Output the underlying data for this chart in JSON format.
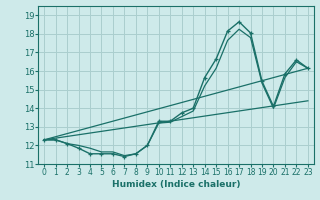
{
  "xlabel": "Humidex (Indice chaleur)",
  "bg_color": "#ceeaea",
  "grid_color": "#aacece",
  "line_color": "#1a7068",
  "xlim": [
    -0.5,
    23.5
  ],
  "ylim": [
    11.0,
    19.5
  ],
  "yticks": [
    11,
    12,
    13,
    14,
    15,
    16,
    17,
    18,
    19
  ],
  "xticks": [
    0,
    1,
    2,
    3,
    4,
    5,
    6,
    7,
    8,
    9,
    10,
    11,
    12,
    13,
    14,
    15,
    16,
    17,
    18,
    19,
    20,
    21,
    22,
    23
  ],
  "curve_main_x": [
    0,
    1,
    2,
    3,
    4,
    5,
    6,
    7,
    8,
    9,
    10,
    11,
    12,
    13,
    14,
    15,
    16,
    17,
    18,
    19,
    20,
    21,
    22,
    23
  ],
  "curve_main_y": [
    12.3,
    12.3,
    12.1,
    11.85,
    11.55,
    11.55,
    11.55,
    11.4,
    11.55,
    12.0,
    13.3,
    13.3,
    13.75,
    14.0,
    15.65,
    16.65,
    18.15,
    18.65,
    18.05,
    15.45,
    14.1,
    15.85,
    16.6,
    16.15
  ],
  "curve_smooth_x": [
    0,
    1,
    2,
    3,
    4,
    5,
    6,
    7,
    8,
    9,
    10,
    11,
    12,
    13,
    14,
    15,
    16,
    17,
    18,
    19,
    20,
    21,
    22,
    23
  ],
  "curve_smooth_y": [
    12.3,
    12.3,
    12.1,
    12.0,
    11.85,
    11.65,
    11.65,
    11.45,
    11.55,
    12.0,
    13.2,
    13.25,
    13.55,
    13.85,
    15.2,
    16.15,
    17.65,
    18.25,
    17.8,
    15.35,
    14.0,
    15.65,
    16.5,
    16.15
  ],
  "line1_x": [
    0,
    23
  ],
  "line1_y": [
    12.3,
    16.15
  ],
  "line2_x": [
    0,
    23
  ],
  "line2_y": [
    12.3,
    14.4
  ]
}
